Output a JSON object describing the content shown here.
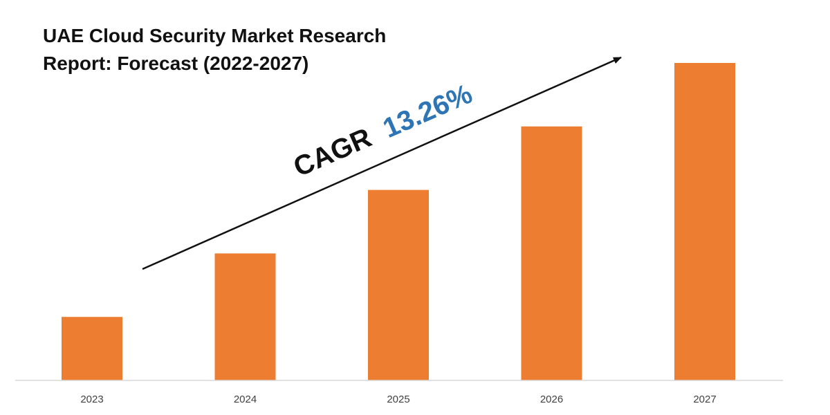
{
  "chart_data": {
    "type": "bar",
    "title_lines": [
      "UAE Cloud Security Market Research",
      "Report: Forecast (2022-2027)"
    ],
    "categories": [
      "2023",
      "2024",
      "2025",
      "2026",
      "2027"
    ],
    "values": [
      1.0,
      2.0,
      3.0,
      4.0,
      5.0
    ],
    "ylim": [
      0,
      5.0
    ],
    "xlabel": "",
    "ylabel": "",
    "grid": false,
    "bar_color": "#ED7D31",
    "annotation": {
      "label": "CAGR",
      "value": "13.26%",
      "label_color": "#111111",
      "value_color": "#2E75B6"
    }
  }
}
